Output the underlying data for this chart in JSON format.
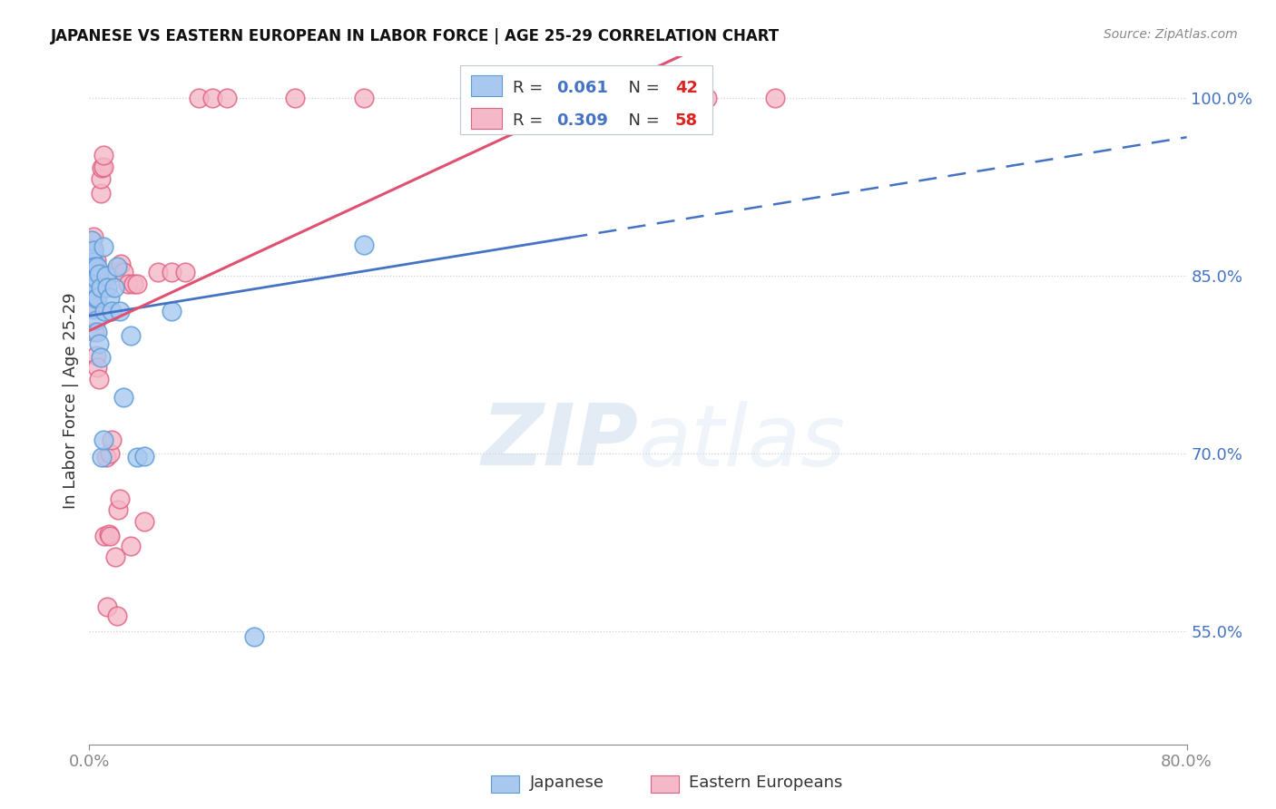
{
  "title": "JAPANESE VS EASTERN EUROPEAN IN LABOR FORCE | AGE 25-29 CORRELATION CHART",
  "source": "Source: ZipAtlas.com",
  "ylabel": "In Labor Force | Age 25-29",
  "y_ticks": [
    0.55,
    0.7,
    0.85,
    1.0
  ],
  "y_tick_labels": [
    "55.0%",
    "70.0%",
    "85.0%",
    "100.0%"
  ],
  "x_range": [
    0.0,
    0.8
  ],
  "y_range": [
    0.455,
    1.035
  ],
  "watermark_zip": "ZIP",
  "watermark_atlas": "atlas",
  "japanese": {
    "color": "#a8c8f0",
    "edge_color": "#5b9bd5",
    "R": 0.061,
    "N": 42,
    "label": "Japanese",
    "x": [
      0.001,
      0.001,
      0.002,
      0.002,
      0.002,
      0.002,
      0.003,
      0.003,
      0.003,
      0.003,
      0.004,
      0.004,
      0.004,
      0.005,
      0.005,
      0.005,
      0.006,
      0.006,
      0.006,
      0.007,
      0.007,
      0.008,
      0.008,
      0.009,
      0.01,
      0.01,
      0.011,
      0.012,
      0.013,
      0.015,
      0.016,
      0.018,
      0.02,
      0.022,
      0.025,
      0.03,
      0.035,
      0.04,
      0.06,
      0.12,
      0.2,
      0.35
    ],
    "y": [
      0.853,
      0.86,
      0.843,
      0.852,
      0.87,
      0.88,
      0.835,
      0.85,
      0.862,
      0.872,
      0.822,
      0.84,
      0.858,
      0.813,
      0.831,
      0.848,
      0.803,
      0.832,
      0.858,
      0.793,
      0.852,
      0.781,
      0.84,
      0.697,
      0.712,
      0.875,
      0.82,
      0.85,
      0.84,
      0.832,
      0.82,
      0.84,
      0.858,
      0.82,
      0.748,
      0.8,
      0.697,
      0.698,
      0.82,
      0.546,
      0.876,
      1.0
    ]
  },
  "eastern_european": {
    "color": "#f4b8c8",
    "edge_color": "#e06080",
    "R": 0.309,
    "N": 58,
    "label": "Eastern Europeans",
    "x": [
      0.001,
      0.001,
      0.001,
      0.002,
      0.002,
      0.002,
      0.002,
      0.003,
      0.003,
      0.003,
      0.003,
      0.003,
      0.003,
      0.004,
      0.004,
      0.004,
      0.005,
      0.005,
      0.005,
      0.006,
      0.006,
      0.007,
      0.007,
      0.008,
      0.008,
      0.009,
      0.01,
      0.01,
      0.011,
      0.012,
      0.013,
      0.014,
      0.015,
      0.015,
      0.016,
      0.018,
      0.019,
      0.02,
      0.021,
      0.022,
      0.023,
      0.025,
      0.028,
      0.03,
      0.032,
      0.035,
      0.04,
      0.05,
      0.06,
      0.07,
      0.08,
      0.09,
      0.1,
      0.15,
      0.2,
      0.3,
      0.45,
      0.5
    ],
    "y": [
      0.86,
      0.87,
      0.88,
      0.833,
      0.851,
      0.862,
      0.872,
      0.823,
      0.843,
      0.853,
      0.862,
      0.873,
      0.883,
      0.803,
      0.823,
      0.853,
      0.783,
      0.833,
      0.863,
      0.773,
      0.843,
      0.763,
      0.842,
      0.92,
      0.932,
      0.941,
      0.942,
      0.952,
      0.631,
      0.697,
      0.571,
      0.632,
      0.631,
      0.7,
      0.712,
      0.853,
      0.613,
      0.563,
      0.653,
      0.662,
      0.86,
      0.853,
      0.843,
      0.622,
      0.843,
      0.843,
      0.643,
      0.853,
      0.853,
      0.853,
      1.0,
      1.0,
      1.0,
      1.0,
      1.0,
      1.0,
      1.0,
      1.0
    ]
  },
  "trend_blue": "#4472c4",
  "trend_pink": "#e05070",
  "legend_R_color": "#4472c4",
  "legend_N_color": "#dd2222",
  "background": "#ffffff",
  "grid_color": "#c8d0dc",
  "axis_color": "#888888"
}
